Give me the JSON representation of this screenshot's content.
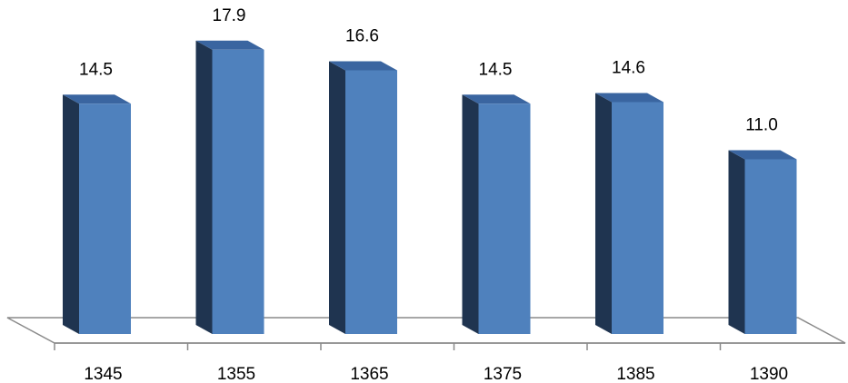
{
  "chart_data": {
    "type": "bar",
    "style": "3d-column",
    "categories": [
      "1345",
      "1355",
      "1365",
      "1375",
      "1385",
      "1390"
    ],
    "values": [
      14.5,
      17.9,
      16.6,
      14.5,
      14.6,
      11.0
    ],
    "value_labels": [
      "14.5",
      "17.9",
      "16.6",
      "14.5",
      "14.6",
      "11.0"
    ],
    "title": "",
    "xlabel": "",
    "ylabel": "",
    "grid": false,
    "legend": "none",
    "colors": {
      "front": "#4f81bd",
      "side": "#1f3450",
      "top": "#3a65a0",
      "floor_stroke": "#7f7f7f"
    }
  }
}
